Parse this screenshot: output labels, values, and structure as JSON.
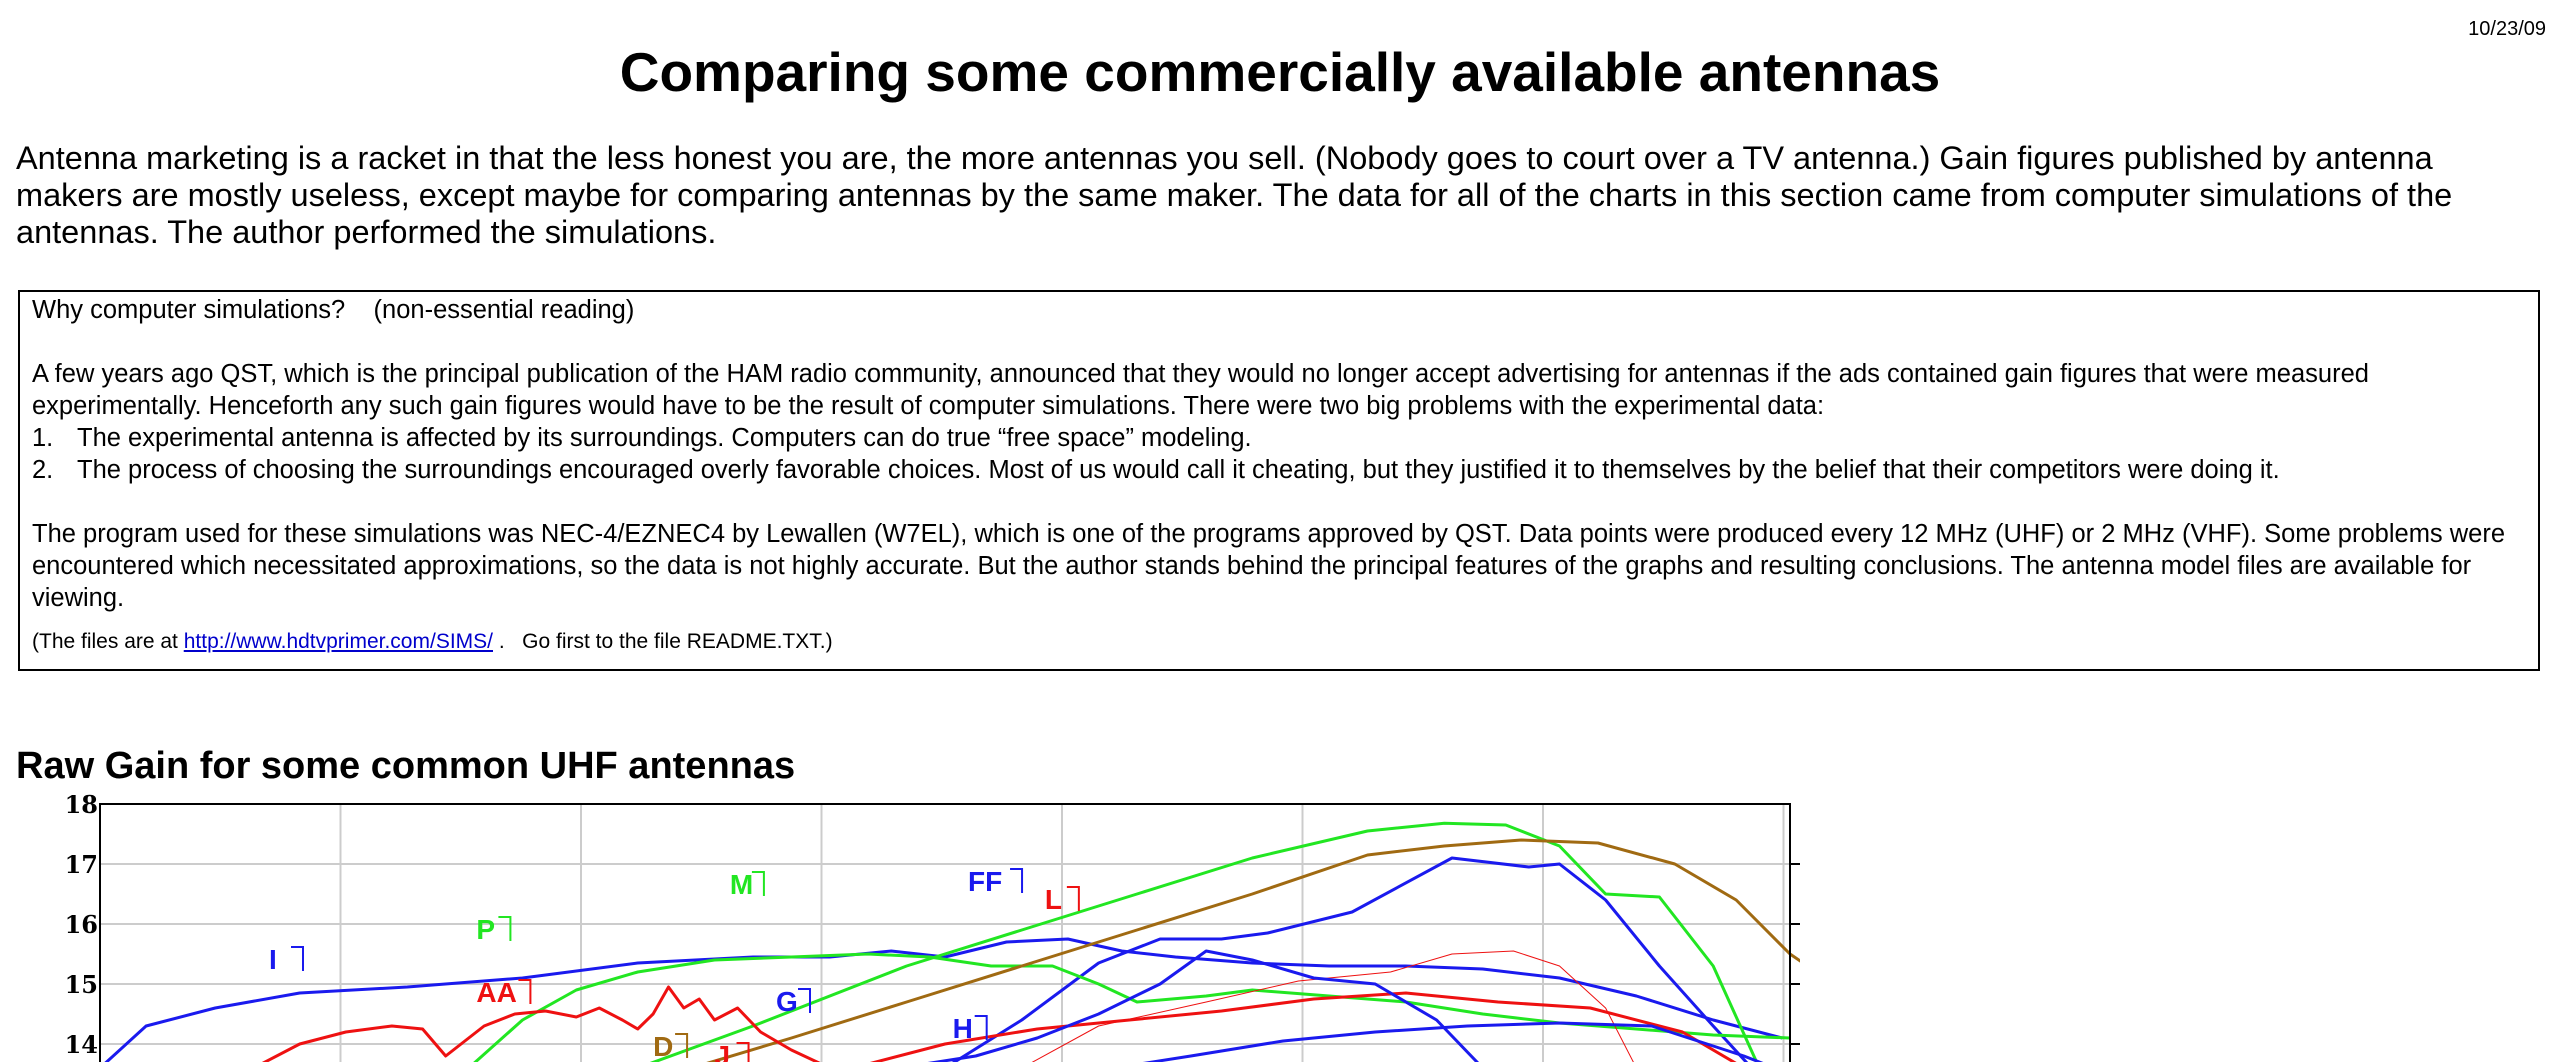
{
  "header": {
    "date": "10/23/09",
    "title": "Comparing some commercially available antennas"
  },
  "intro": "Antenna marketing is a racket in that the less honest you are, the more antennas you sell.  (Nobody goes to court over a TV antenna.)  Gain figures published by antenna makers are mostly useless, except maybe for comparing antennas by the same maker.  The data for all of the charts in this section came from computer simulations of the antennas.  The author performed the simulations.",
  "sidebar_box": {
    "heading": "Why computer simulations?    (non-essential reading)",
    "para1": "A few years ago QST, which is the principal publication of the HAM radio community, announced that they would no longer accept advertising for antennas if the ads contained gain figures that were measured experimentally.  Henceforth any such gain figures would have to be the result of computer simulations.  There were two big problems with the experimental data:",
    "items": [
      {
        "num": "1.",
        "text": "The experimental antenna is affected by its surroundings.  Computers can do true “free space” modeling."
      },
      {
        "num": "2.",
        "text": "The process of choosing the surroundings encouraged overly favorable choices.  Most of us would call it cheating, but they justified it to themselves by the belief that their competitors were doing it."
      }
    ],
    "para2": "The program used for these simulations was NEC-4/EZNEC4 by Lewallen (W7EL), which is one of the programs approved by QST.  Data points were produced every 12 MHz (UHF) or 2 MHz (VHF).  Some problems were encountered which necessitated approximations, so the data is not highly accurate.  But the author stands behind the principal features of the graphs and resulting conclusions.  The antenna model files are available for viewing.",
    "files_prefix": "(The files are at ",
    "files_link": "http://www.hdtvprimer.com/SIMS/",
    "files_suffix": " .   Go first to the file README.TXT.)"
  },
  "chart_heading": "Raw Gain for some common UHF antennas",
  "colors": {
    "blue": "#1a1aee",
    "green": "#22e622",
    "red": "#ee1111",
    "brown": "#a06a12",
    "grid": "#cccccc"
  },
  "chart_data": {
    "type": "line",
    "title": "Raw Gain for some common UHF antennas",
    "ylim_left": [
      13.6,
      18
    ],
    "ylim_right": [
      11.6,
      16
    ],
    "y_ticks_left": [
      "18",
      "17",
      "16",
      "15",
      "14"
    ],
    "y_ticks_right": [
      "15",
      "14",
      "13",
      "12"
    ],
    "grid": true,
    "x_index_range": [
      0,
      14
    ],
    "series": [
      {
        "name": "I",
        "color": "blue",
        "width": 3,
        "points": [
          [
            0,
            13.6
          ],
          [
            0.6,
            14.3
          ],
          [
            1.5,
            14.6
          ],
          [
            2.6,
            14.85
          ],
          [
            4,
            14.95
          ],
          [
            5.5,
            15.1
          ],
          [
            7,
            15.35
          ],
          [
            8.5,
            15.45
          ],
          [
            9.5,
            15.45
          ],
          [
            10.3,
            15.55
          ],
          [
            11,
            15.45
          ],
          [
            11.8,
            15.7
          ],
          [
            12.6,
            15.75
          ],
          [
            13.3,
            15.55
          ],
          [
            14,
            15.45
          ],
          [
            15,
            15.35
          ],
          [
            16,
            15.3
          ],
          [
            17,
            15.3
          ],
          [
            18,
            15.25
          ],
          [
            19,
            15.1
          ],
          [
            20,
            14.8
          ],
          [
            21,
            14.4
          ],
          [
            21.9,
            14.1
          ]
        ]
      },
      {
        "name": "FF",
        "color": "blue",
        "width": 3,
        "points": [
          [
            11,
            13.6
          ],
          [
            12,
            14.4
          ],
          [
            13,
            15.35
          ],
          [
            13.8,
            15.75
          ],
          [
            14.6,
            15.75
          ],
          [
            15.2,
            15.85
          ],
          [
            16.3,
            16.2
          ],
          [
            17.6,
            17.1
          ],
          [
            18.6,
            16.95
          ],
          [
            19,
            17.0
          ],
          [
            19.6,
            16.4
          ],
          [
            20.3,
            15.3
          ],
          [
            21,
            14.3
          ],
          [
            21.5,
            13.6
          ]
        ]
      },
      {
        "name": "M",
        "color": "green",
        "width": 3,
        "points": [
          [
            7,
            13.6
          ],
          [
            8.5,
            14.3
          ],
          [
            10.5,
            15.3
          ],
          [
            12,
            15.9
          ],
          [
            13.5,
            16.5
          ],
          [
            15,
            17.1
          ],
          [
            16.5,
            17.55
          ],
          [
            17.5,
            17.68
          ],
          [
            18.3,
            17.65
          ],
          [
            19,
            17.3
          ],
          [
            19.6,
            16.5
          ],
          [
            20.3,
            16.45
          ],
          [
            21,
            15.3
          ],
          [
            21.6,
            13.6
          ]
        ]
      },
      {
        "name": "P",
        "color": "green",
        "width": 3,
        "points": [
          [
            4.8,
            13.6
          ],
          [
            5.5,
            14.4
          ],
          [
            6.2,
            14.9
          ],
          [
            7,
            15.2
          ],
          [
            8,
            15.4
          ],
          [
            9,
            15.45
          ],
          [
            10,
            15.5
          ],
          [
            10.8,
            15.45
          ],
          [
            11.6,
            15.3
          ],
          [
            12.4,
            15.3
          ],
          [
            13,
            15.0
          ],
          [
            13.5,
            14.7
          ],
          [
            14.4,
            14.8
          ],
          [
            15,
            14.9
          ],
          [
            16,
            14.8
          ],
          [
            17,
            14.7
          ],
          [
            18,
            14.5
          ],
          [
            19,
            14.35
          ],
          [
            20,
            14.25
          ],
          [
            21,
            14.15
          ],
          [
            22,
            14.1
          ]
        ]
      },
      {
        "name": "D",
        "color": "brown",
        "width": 3,
        "points": [
          [
            7.7,
            13.6
          ],
          [
            9,
            14.1
          ],
          [
            10.5,
            14.7
          ],
          [
            12,
            15.3
          ],
          [
            13.5,
            15.9
          ],
          [
            15,
            16.5
          ],
          [
            16.5,
            17.15
          ],
          [
            17.5,
            17.3
          ],
          [
            18.5,
            17.4
          ],
          [
            19.5,
            17.35
          ],
          [
            20.5,
            17.0
          ],
          [
            21.3,
            16.4
          ],
          [
            22,
            15.5
          ],
          [
            22.4,
            15.15
          ]
        ]
      },
      {
        "name": "AA",
        "color": "red",
        "width": 3,
        "points": [
          [
            2,
            13.6
          ],
          [
            2.6,
            14.0
          ],
          [
            3.2,
            14.2
          ],
          [
            3.8,
            14.3
          ],
          [
            4.2,
            14.25
          ],
          [
            4.5,
            13.8
          ],
          [
            5,
            14.3
          ],
          [
            5.4,
            14.5
          ],
          [
            5.8,
            14.55
          ],
          [
            6.2,
            14.45
          ],
          [
            6.5,
            14.6
          ],
          [
            6.8,
            14.4
          ],
          [
            7,
            14.25
          ],
          [
            7.2,
            14.5
          ],
          [
            7.4,
            14.95
          ],
          [
            7.6,
            14.6
          ],
          [
            7.8,
            14.75
          ],
          [
            8,
            14.4
          ],
          [
            8.3,
            14.6
          ],
          [
            8.6,
            14.2
          ],
          [
            9,
            13.9
          ],
          [
            9.5,
            13.6
          ]
        ]
      },
      {
        "name": "J",
        "color": "red",
        "width": 3,
        "points": [
          [
            9.8,
            13.6
          ],
          [
            11,
            14.0
          ],
          [
            12.2,
            14.25
          ],
          [
            13.4,
            14.4
          ],
          [
            14.6,
            14.55
          ],
          [
            15.8,
            14.75
          ],
          [
            17,
            14.85
          ],
          [
            18.2,
            14.7
          ],
          [
            19.4,
            14.6
          ],
          [
            20.6,
            14.2
          ],
          [
            21.4,
            13.6
          ]
        ]
      },
      {
        "name": "L",
        "color": "red",
        "width": 1,
        "points": [
          [
            12,
            13.6
          ],
          [
            13,
            14.3
          ],
          [
            14.4,
            14.7
          ],
          [
            15.6,
            15.05
          ],
          [
            16.8,
            15.2
          ],
          [
            17.6,
            15.5
          ],
          [
            18.4,
            15.55
          ],
          [
            19,
            15.3
          ],
          [
            19.6,
            14.6
          ],
          [
            20,
            13.6
          ]
        ]
      },
      {
        "name": "G",
        "color": "blue",
        "width": 3,
        "points": [
          [
            10.4,
            13.6
          ],
          [
            11.4,
            13.8
          ],
          [
            12.2,
            14.1
          ],
          [
            13,
            14.5
          ],
          [
            13.8,
            15.0
          ],
          [
            14.4,
            15.55
          ],
          [
            15,
            15.4
          ],
          [
            15.8,
            15.1
          ],
          [
            16.6,
            15.0
          ],
          [
            17.4,
            14.4
          ],
          [
            18,
            13.6
          ]
        ]
      },
      {
        "name": "H",
        "color": "blue",
        "width": 3,
        "points": [
          [
            13.2,
            13.6
          ],
          [
            14.2,
            13.8
          ],
          [
            15.4,
            14.05
          ],
          [
            16.6,
            14.2
          ],
          [
            17.8,
            14.3
          ],
          [
            19,
            14.35
          ],
          [
            20.2,
            14.3
          ],
          [
            21.4,
            13.8
          ],
          [
            21.8,
            13.6
          ]
        ]
      }
    ],
    "labels": [
      {
        "text": "I",
        "color": "blue"
      },
      {
        "text": "P",
        "color": "green"
      },
      {
        "text": "M",
        "color": "green"
      },
      {
        "text": "FF",
        "color": "blue"
      },
      {
        "text": "L",
        "color": "red"
      },
      {
        "text": "AA",
        "color": "red"
      },
      {
        "text": "G",
        "color": "blue"
      },
      {
        "text": "H",
        "color": "blue"
      },
      {
        "text": "D",
        "color": "brown"
      },
      {
        "text": "J",
        "color": "red"
      }
    ]
  }
}
